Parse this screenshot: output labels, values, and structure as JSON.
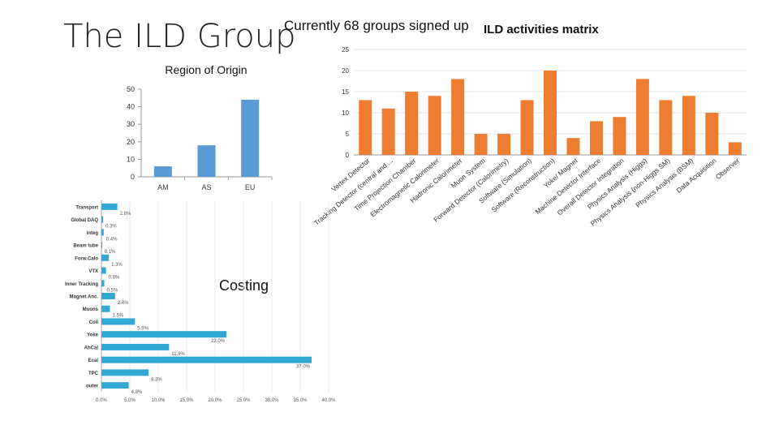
{
  "slide": {
    "title": "The ILD Group",
    "signup_note": "Currently 68 groups signed up",
    "matrix_title": "ILD activities matrix",
    "costing_title": "Costing"
  },
  "chart_data": [
    {
      "id": "region",
      "type": "bar",
      "title": "Region of Origin",
      "categories": [
        "AM",
        "AS",
        "EU"
      ],
      "values": [
        6,
        18,
        44
      ],
      "ylim": [
        0,
        50
      ],
      "yticks": [
        "0",
        "10",
        "20",
        "30",
        "40",
        "50"
      ],
      "color": "#5b9bd5"
    },
    {
      "id": "activities",
      "type": "bar",
      "title": "ILD activities matrix",
      "categories": [
        "Vertex Detector",
        "Tracking Detector (central and ...",
        "Time Projection Chamber",
        "Electromagnetic Calorimeter",
        "Hadronic Calorimeter",
        "Muon System",
        "Forward Detector (Calorimetry)",
        "Software (Simulation)",
        "Software (Reconstruction)",
        "Yoke/ Magnet",
        "Machine Detector Interface",
        "Overall Detector Integration",
        "Physics Analysis (Higgs)",
        "Physics Analysis (non-Higgs SM)",
        "Physics Analysis (BSM)",
        "Data Acquisition",
        "Observer"
      ],
      "values": [
        13,
        11,
        15,
        14,
        18,
        5,
        5,
        13,
        20,
        4,
        8,
        9,
        18,
        13,
        14,
        10,
        3
      ],
      "ylim": [
        0,
        25
      ],
      "yticks": [
        "0",
        "5",
        "10",
        "15",
        "20",
        "25"
      ],
      "color": "#ed7d31"
    },
    {
      "id": "costing",
      "type": "bar",
      "orientation": "horizontal",
      "title": "Costing",
      "categories": [
        "Transport",
        "Global DAQ",
        "integ",
        "Beam tube",
        "Forw.Calo",
        "VTX",
        "Inner Tracking",
        "Magnet Anc.",
        "Muons",
        "Coil",
        "Yoke",
        "AhCal",
        "Ecal",
        "TPC",
        "outer"
      ],
      "values": [
        2.8,
        0.3,
        0.4,
        0.1,
        1.3,
        0.8,
        0.5,
        2.4,
        1.5,
        5.9,
        22.0,
        11.9,
        37.0,
        8.3,
        4.8
      ],
      "value_labels": [
        "2.8%",
        "0.3%",
        "0.4%",
        "0.1%",
        "1.3%",
        "0.8%",
        "0.5%",
        "2.4%",
        "1.5%",
        "5.9%",
        "22.0%",
        "11.9%",
        "37.0%",
        "8.3%",
        "4.8%"
      ],
      "xlim": [
        0,
        40
      ],
      "xticks": [
        "0.0%",
        "5.0%",
        "10.0%",
        "15.0%",
        "20.0%",
        "25.0%",
        "30.0%",
        "35.0%",
        "40.0%"
      ],
      "color": "#31a9d4"
    }
  ]
}
